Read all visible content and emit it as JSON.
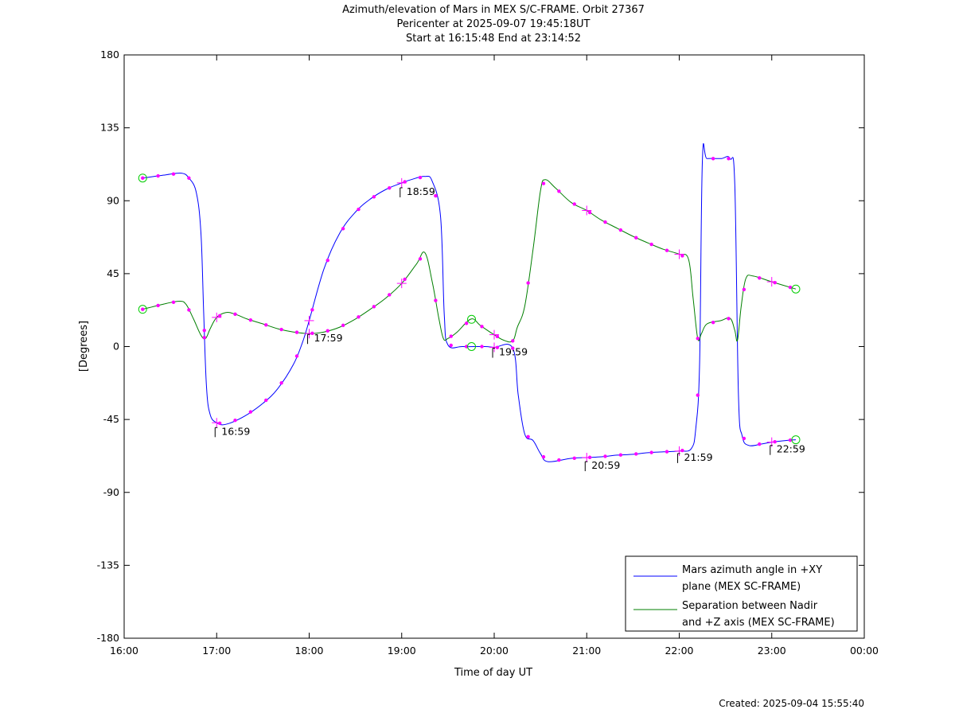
{
  "chart_data": {
    "type": "line",
    "title_lines": [
      "Azimuth/elevation of Mars in MEX S/C-FRAME.  Orbit 27367",
      "Pericenter at 2025-09-07 19:45:18UT",
      "Start at 16:15:48 End at 23:14:52"
    ],
    "xlabel": "Time of day UT",
    "ylabel": "[Degrees]",
    "xlim": [
      16.0,
      24.0
    ],
    "ylim": [
      -180,
      180
    ],
    "x_ticks": [
      16,
      17,
      18,
      19,
      20,
      21,
      22,
      23,
      24
    ],
    "x_tick_labels": [
      "16:00",
      "17:00",
      "18:00",
      "19:00",
      "20:00",
      "21:00",
      "22:00",
      "23:00",
      "00:00"
    ],
    "y_ticks": [
      180,
      135,
      90,
      45,
      0,
      -45,
      -90,
      -135,
      -180
    ],
    "y_tick_labels": [
      "180",
      "135",
      "90",
      "45",
      "0",
      "-45",
      "-90",
      "-135",
      "-180"
    ],
    "legend_position": "bottom-right",
    "series": [
      {
        "name": "Mars azimuth angle in +XY plane (MEX SC-FRAME)",
        "legend_lines": [
          "Mars azimuth angle in +XY",
          "plane (MEX SC-FRAME)"
        ],
        "color": "#0000ff",
        "points": [
          [
            16.2,
            104
          ],
          [
            16.45,
            106
          ],
          [
            16.62,
            107
          ],
          [
            16.7,
            104
          ],
          [
            16.78,
            95
          ],
          [
            16.83,
            70
          ],
          [
            16.86,
            20
          ],
          [
            16.89,
            -25
          ],
          [
            16.93,
            -42
          ],
          [
            17.0,
            -47
          ],
          [
            17.1,
            -48
          ],
          [
            17.3,
            -43
          ],
          [
            17.5,
            -35
          ],
          [
            17.66,
            -26
          ],
          [
            17.83,
            -11
          ],
          [
            17.93,
            3
          ],
          [
            18.0,
            16
          ],
          [
            18.16,
            48
          ],
          [
            18.33,
            70
          ],
          [
            18.5,
            83
          ],
          [
            18.66,
            91
          ],
          [
            18.83,
            97
          ],
          [
            19.0,
            101
          ],
          [
            19.1,
            103
          ],
          [
            19.25,
            105
          ],
          [
            19.33,
            102
          ],
          [
            19.42,
            80
          ],
          [
            19.46,
            20
          ],
          [
            19.5,
            1
          ],
          [
            19.66,
            0
          ],
          [
            19.9,
            0
          ],
          [
            20.0,
            -0.5
          ],
          [
            20.2,
            -1
          ],
          [
            20.26,
            -30
          ],
          [
            20.33,
            -54
          ],
          [
            20.42,
            -58
          ],
          [
            20.5,
            -66
          ],
          [
            20.58,
            -71
          ],
          [
            20.83,
            -69
          ],
          [
            21.0,
            -68.5
          ],
          [
            21.16,
            -68
          ],
          [
            21.33,
            -67
          ],
          [
            21.5,
            -66.5
          ],
          [
            21.66,
            -65.5
          ],
          [
            21.83,
            -65
          ],
          [
            22.0,
            -64.5
          ],
          [
            22.13,
            -63
          ],
          [
            22.18,
            -50
          ],
          [
            22.22,
            -10
          ],
          [
            22.25,
            115
          ],
          [
            22.3,
            116
          ],
          [
            22.45,
            116
          ],
          [
            22.55,
            116
          ],
          [
            22.6,
            100
          ],
          [
            22.64,
            -30
          ],
          [
            22.68,
            -55
          ],
          [
            22.75,
            -61
          ],
          [
            22.9,
            -60
          ],
          [
            23.0,
            -59
          ],
          [
            23.15,
            -58
          ],
          [
            23.26,
            -57.5
          ]
        ]
      },
      {
        "name": "Separation between Nadir and +Z axis (MEX SC-FRAME)",
        "legend_lines": [
          "Separation between Nadir",
          "and +Z axis (MEX SC-FRAME)"
        ],
        "color": "#007f00",
        "points": [
          [
            16.2,
            23
          ],
          [
            16.45,
            26.5
          ],
          [
            16.6,
            28
          ],
          [
            16.67,
            26
          ],
          [
            16.75,
            17
          ],
          [
            16.83,
            7
          ],
          [
            16.88,
            5
          ],
          [
            16.93,
            11
          ],
          [
            17.0,
            18
          ],
          [
            17.1,
            21
          ],
          [
            17.2,
            20
          ],
          [
            17.33,
            17
          ],
          [
            17.5,
            14
          ],
          [
            17.66,
            11
          ],
          [
            17.83,
            9
          ],
          [
            18.0,
            8
          ],
          [
            18.16,
            9
          ],
          [
            18.33,
            12
          ],
          [
            18.5,
            17
          ],
          [
            18.66,
            23
          ],
          [
            18.83,
            30
          ],
          [
            19.0,
            39
          ],
          [
            19.16,
            51
          ],
          [
            19.25,
            58
          ],
          [
            19.33,
            40
          ],
          [
            19.4,
            18
          ],
          [
            19.45,
            5
          ],
          [
            19.5,
            5
          ],
          [
            19.6,
            9
          ],
          [
            19.75,
            17
          ],
          [
            19.85,
            13
          ],
          [
            19.98,
            8
          ],
          [
            20.1,
            4
          ],
          [
            20.2,
            3.5
          ],
          [
            20.25,
            12
          ],
          [
            20.33,
            25
          ],
          [
            20.42,
            60
          ],
          [
            20.5,
            96
          ],
          [
            20.55,
            103
          ],
          [
            20.66,
            98
          ],
          [
            20.83,
            89
          ],
          [
            21.0,
            84
          ],
          [
            21.16,
            78
          ],
          [
            21.33,
            73
          ],
          [
            21.5,
            68
          ],
          [
            21.66,
            64
          ],
          [
            21.83,
            60
          ],
          [
            22.0,
            57
          ],
          [
            22.1,
            54
          ],
          [
            22.15,
            30
          ],
          [
            22.2,
            5
          ],
          [
            22.24,
            8
          ],
          [
            22.3,
            14
          ],
          [
            22.45,
            16
          ],
          [
            22.55,
            17.5
          ],
          [
            22.6,
            10
          ],
          [
            22.63,
            4
          ],
          [
            22.67,
            25
          ],
          [
            22.72,
            42
          ],
          [
            22.8,
            43.5
          ],
          [
            23.0,
            40
          ],
          [
            23.26,
            35.5
          ]
        ]
      }
    ],
    "marker_color": "#ff00ff",
    "ring_color": "#00cc00",
    "annotations": [
      {
        "x": 16.983,
        "y": -50,
        "label": "16:59"
      },
      {
        "x": 17.983,
        "y": 7.5,
        "label": "17:59"
      },
      {
        "x": 18.983,
        "y": 98,
        "label": "18:59"
      },
      {
        "x": 19.983,
        "y": -1,
        "label": "19:59"
      },
      {
        "x": 20.983,
        "y": -71,
        "label": "20:59"
      },
      {
        "x": 21.983,
        "y": -66,
        "label": "21:59"
      },
      {
        "x": 22.983,
        "y": -61,
        "label": "22:59"
      }
    ],
    "created": "Created: 2025-09-04 15:55:40"
  }
}
